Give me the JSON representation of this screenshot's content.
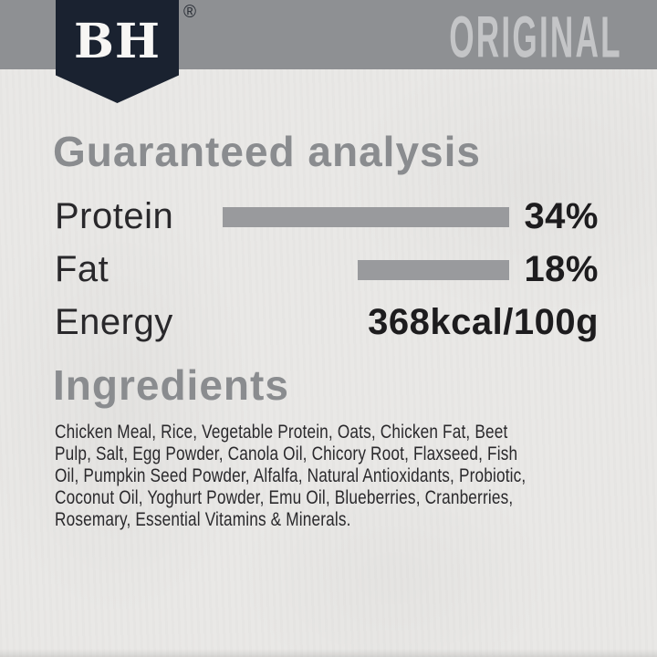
{
  "brand": {
    "logo_text": "BH",
    "registered_mark": "®",
    "variant": "ORIGINAL"
  },
  "analysis": {
    "heading": "Guaranteed analysis",
    "rows": [
      {
        "label": "Protein",
        "value": "34%",
        "bar_percent": 34
      },
      {
        "label": "Fat",
        "value": "18%",
        "bar_percent": 18
      },
      {
        "label": "Energy",
        "value": "368kcal/100g",
        "bar_percent": null
      }
    ]
  },
  "ingredients": {
    "heading": "Ingredients",
    "lines": [
      "Chicken Meal, Rice, Vegetable Protein, Oats, Chicken Fat, Beet",
      "Pulp, Salt, Egg Powder, Canola Oil, Chicory Root, Flaxseed, Fish",
      "Oil, Pumpkin Seed Powder, Alfalfa, Natural Antioxidants, Probiotic,",
      "Coconut Oil, Yoghurt Powder, Emu Oil, Blueberries, Cranberries,",
      "Rosemary, Essential Vitamins & Minerals."
    ]
  },
  "colors": {
    "paper_bg": "#e9e8e6",
    "banner_gray": "#8e9093",
    "shield_navy": "#1a2230",
    "variant_text": "#c4c5c7",
    "regmark": "#272c34",
    "heading_gray": "#8a8c8f",
    "label_dark": "#29282b",
    "bar_gray": "#999a9d",
    "value_black": "#1d1c1e",
    "body_dark": "#2a292c"
  }
}
